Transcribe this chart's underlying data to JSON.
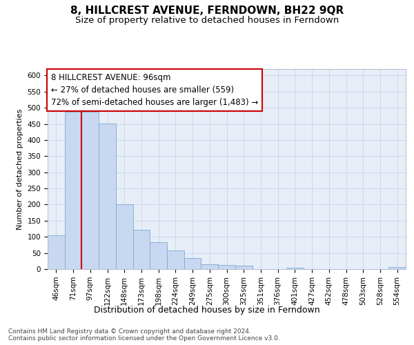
{
  "title": "8, HILLCREST AVENUE, FERNDOWN, BH22 9QR",
  "subtitle": "Size of property relative to detached houses in Ferndown",
  "xlabel": "Distribution of detached houses by size in Ferndown",
  "ylabel": "Number of detached properties",
  "categories": [
    "46sqm",
    "71sqm",
    "97sqm",
    "122sqm",
    "148sqm",
    "173sqm",
    "198sqm",
    "224sqm",
    "249sqm",
    "275sqm",
    "300sqm",
    "325sqm",
    "351sqm",
    "376sqm",
    "401sqm",
    "427sqm",
    "452sqm",
    "478sqm",
    "503sqm",
    "528sqm",
    "554sqm"
  ],
  "values": [
    105,
    488,
    488,
    452,
    200,
    122,
    83,
    57,
    35,
    16,
    13,
    10,
    0,
    0,
    5,
    0,
    0,
    0,
    0,
    0,
    7
  ],
  "bar_color": "#c8d8f0",
  "bar_edge_color": "#7aaad0",
  "property_line_index": 2,
  "property_line_color": "#cc0000",
  "annotation_text": "8 HILLCREST AVENUE: 96sqm\n← 27% of detached houses are smaller (559)\n72% of semi-detached houses are larger (1,483) →",
  "annotation_box_facecolor": "#ffffff",
  "annotation_box_edgecolor": "#cc0000",
  "grid_color": "#c8d4e8",
  "bg_color": "#e8eef8",
  "ylim": [
    0,
    620
  ],
  "yticks": [
    0,
    50,
    100,
    150,
    200,
    250,
    300,
    350,
    400,
    450,
    500,
    550,
    600
  ],
  "title_fontsize": 11,
  "subtitle_fontsize": 9.5,
  "ylabel_fontsize": 8,
  "xlabel_fontsize": 9,
  "tick_fontsize": 7.5,
  "annotation_fontsize": 8.5,
  "footer_fontsize": 6.5,
  "footer_text": "Contains HM Land Registry data © Crown copyright and database right 2024.\nContains public sector information licensed under the Open Government Licence v3.0."
}
